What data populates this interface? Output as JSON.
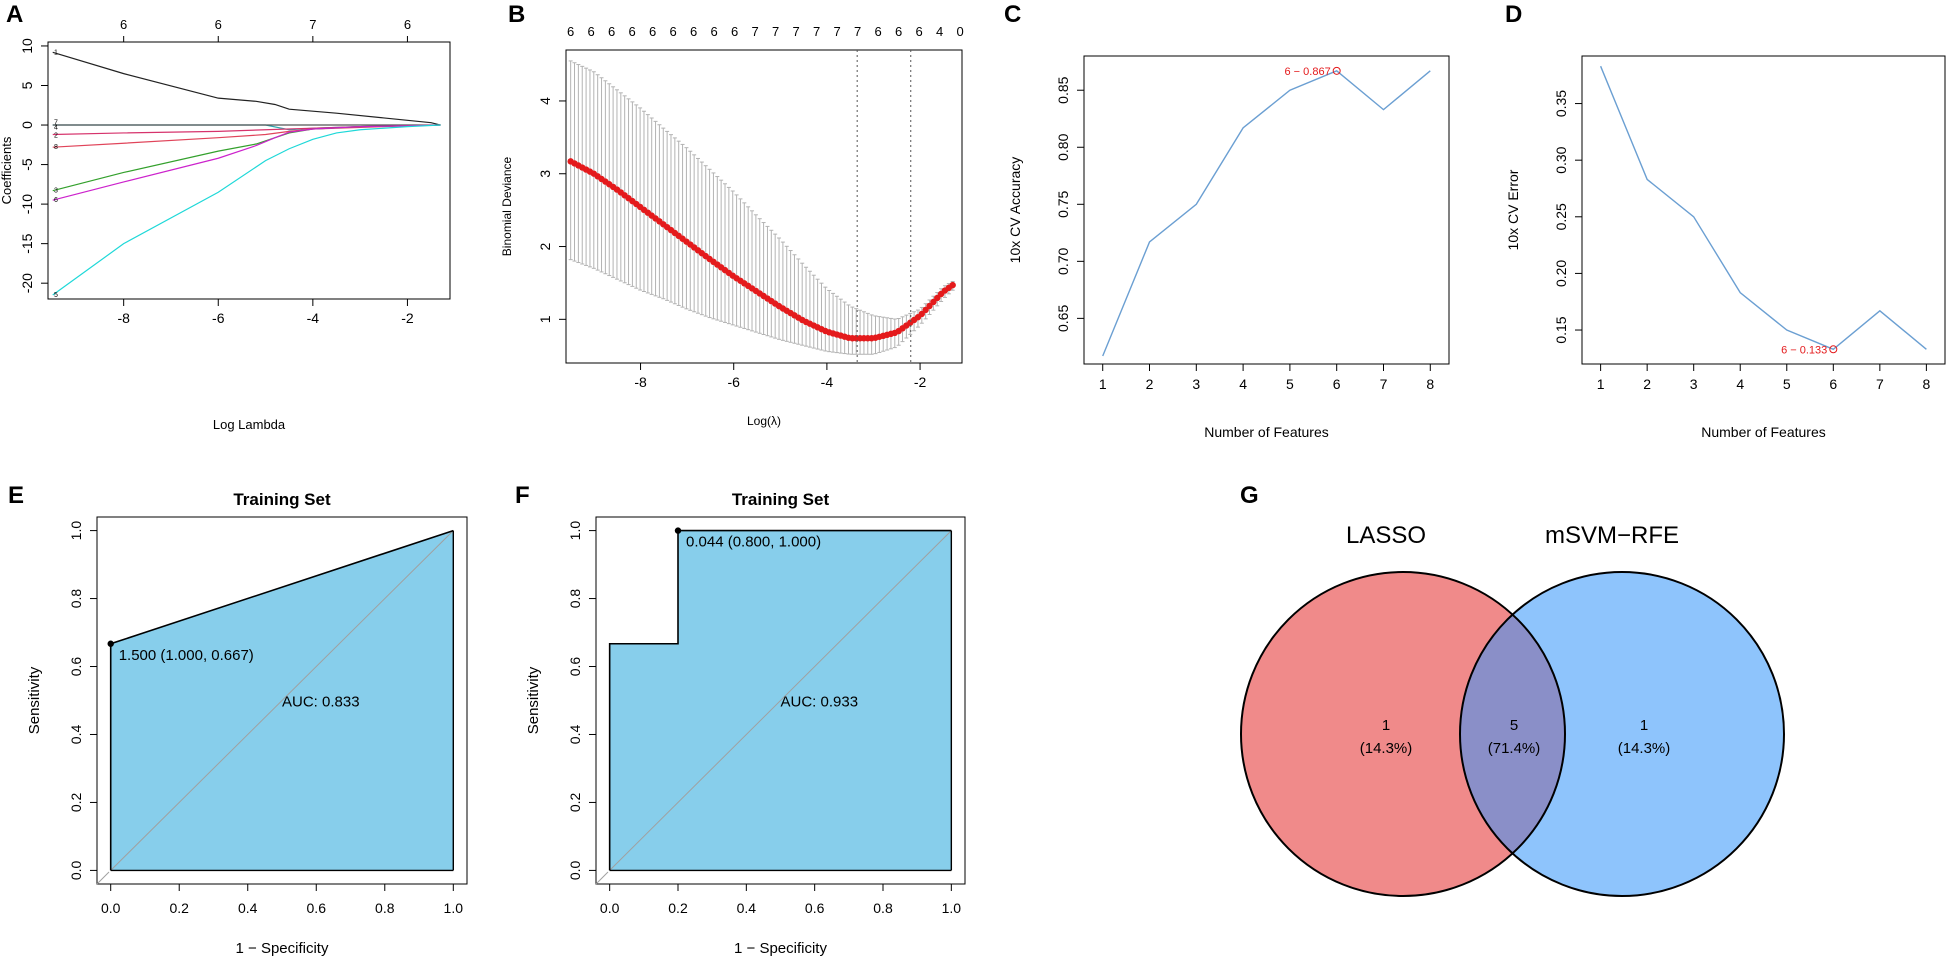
{
  "figure": {
    "panels": [
      {
        "label": "A"
      },
      {
        "label": "B"
      },
      {
        "label": "C"
      },
      {
        "label": "D"
      },
      {
        "label": "E"
      },
      {
        "label": "F"
      },
      {
        "label": "G"
      }
    ]
  },
  "colors": {
    "red": "#e41a1c",
    "roc_fill": "#87ceeb",
    "venn_left": "#f08a8a",
    "venn_right": "#8ec4fc",
    "venn_overlap": "#8a8fc8",
    "line_blue": "#6b9fd2",
    "grey": "#b3b3b3"
  },
  "chart_data": [
    {
      "panel": "A",
      "type": "line",
      "xlabel": "Log Lambda",
      "ylabel": "Coefficients",
      "xlim": [
        -9.6,
        -1.1
      ],
      "ylim": [
        -22,
        10.5
      ],
      "xticks": [
        -8,
        -6,
        -4,
        -2
      ],
      "yticks": [
        -20,
        -15,
        -10,
        -5,
        0,
        5,
        10
      ],
      "top_ticks": {
        "x": [
          -8,
          -6,
          -4,
          -2
        ],
        "labels": [
          "6",
          "6",
          "7",
          "6"
        ]
      },
      "series": [
        {
          "name": "1",
          "color": "#222222",
          "x": [
            -9.5,
            -8,
            -6,
            -5.2,
            -4.8,
            -4.5,
            -3.5,
            -2.5,
            -1.5,
            -1.3
          ],
          "y": [
            9.2,
            6.5,
            3.4,
            3.0,
            2.6,
            2.0,
            1.5,
            0.9,
            0.3,
            0.0
          ]
        },
        {
          "name": "7",
          "color": "#2ea8b0",
          "x": [
            -9.5,
            -6,
            -5,
            -4.5,
            -4,
            -3,
            -2,
            -1.3
          ],
          "y": [
            0.0,
            0.0,
            0.0,
            -0.6,
            -0.4,
            -0.2,
            -0.1,
            0.0
          ]
        },
        {
          "name": "4",
          "color": "#555555",
          "x": [
            -9.5,
            -6,
            -5,
            -4,
            -3,
            -1.3
          ],
          "y": [
            0.0,
            0.0,
            0.0,
            0.0,
            0.0,
            0.0
          ]
        },
        {
          "name": "2",
          "color": "#d6336c",
          "x": [
            -9.5,
            -8,
            -6,
            -5,
            -4,
            -3,
            -2,
            -1.3
          ],
          "y": [
            -1.2,
            -1.0,
            -0.8,
            -0.6,
            -0.4,
            -0.2,
            -0.1,
            0.0
          ]
        },
        {
          "name": "8",
          "color": "#e0445a",
          "x": [
            -9.5,
            -8,
            -6,
            -5,
            -4.5,
            -4,
            -3,
            -2,
            -1.3
          ],
          "y": [
            -2.8,
            -2.3,
            -1.6,
            -1.2,
            -0.8,
            -0.5,
            -0.3,
            -0.1,
            0.0
          ]
        },
        {
          "name": "3",
          "color": "#33a02c",
          "x": [
            -9.5,
            -8,
            -6,
            -5.2,
            -4.8,
            -4.5,
            -4,
            -3,
            -2,
            -1.3
          ],
          "y": [
            -8.3,
            -6.0,
            -3.3,
            -2.4,
            -1.6,
            -1.0,
            -0.5,
            -0.2,
            -0.1,
            0.0
          ]
        },
        {
          "name": "6",
          "color": "#cc22cc",
          "x": [
            -9.5,
            -8,
            -6,
            -5.2,
            -4.8,
            -4.5,
            -4,
            -3,
            -2,
            -1.3
          ],
          "y": [
            -9.5,
            -7.2,
            -4.2,
            -2.6,
            -1.6,
            -0.9,
            -0.5,
            -0.2,
            -0.1,
            0.0
          ]
        },
        {
          "name": "5",
          "color": "#1ed8d8",
          "x": [
            -9.5,
            -8,
            -6,
            -5,
            -4.5,
            -4,
            -3.5,
            -3,
            -2,
            -1.3
          ],
          "y": [
            -21.5,
            -15,
            -8.5,
            -4.5,
            -3.0,
            -1.8,
            -1.0,
            -0.6,
            -0.2,
            0.0
          ]
        }
      ],
      "line_labels": [
        {
          "name": "1",
          "y": 9.2
        },
        {
          "name": "7",
          "y": 0.3
        },
        {
          "name": "4",
          "y": -0.3
        },
        {
          "name": "2",
          "y": -1.3
        },
        {
          "name": "8",
          "y": -2.8
        },
        {
          "name": "3",
          "y": -8.3
        },
        {
          "name": "6",
          "y": -9.5
        },
        {
          "name": "5",
          "y": -21.5
        }
      ]
    },
    {
      "panel": "B",
      "type": "scatter",
      "xlabel": "Log(λ)",
      "ylabel": "Binomial Deviance",
      "xlim": [
        -9.6,
        -1.1
      ],
      "ylim": [
        0.4,
        4.7
      ],
      "xticks": [
        -8,
        -6,
        -4,
        -2
      ],
      "yticks": [
        1,
        2,
        3,
        4
      ],
      "top_ticks": {
        "x": [
          -9.5,
          -9.06,
          -8.62,
          -8.18,
          -7.74,
          -7.3,
          -6.86,
          -6.42,
          -5.98,
          -5.54,
          -5.1,
          -4.66,
          -4.22,
          -3.78,
          -3.34,
          -2.9,
          -2.46,
          -2.02,
          -1.58,
          -1.14
        ],
        "labels": [
          "6",
          "6",
          "6",
          "6",
          "6",
          "6",
          "6",
          "6",
          "6",
          "7",
          "7",
          "7",
          "7",
          "7",
          "7",
          "6",
          "6",
          "6",
          "4",
          "0"
        ]
      },
      "vlines": [
        -3.35,
        -2.2
      ],
      "curve": {
        "x": [
          -9.5,
          -9,
          -8.5,
          -8,
          -7.5,
          -7,
          -6.5,
          -6,
          -5.5,
          -5,
          -4.5,
          -4,
          -3.5,
          -3,
          -2.5,
          -2,
          -1.5,
          -1.3
        ],
        "y": [
          3.17,
          3.0,
          2.78,
          2.54,
          2.3,
          2.06,
          1.82,
          1.59,
          1.38,
          1.17,
          0.98,
          0.83,
          0.74,
          0.74,
          0.82,
          1.05,
          1.38,
          1.47
        ]
      },
      "error_band": {
        "upper": [
          4.55,
          4.4,
          4.15,
          3.9,
          3.62,
          3.35,
          3.05,
          2.75,
          2.42,
          2.1,
          1.75,
          1.42,
          1.18,
          1.05,
          1.0,
          1.14,
          1.45,
          1.52
        ],
        "lower": [
          1.82,
          1.7,
          1.55,
          1.4,
          1.28,
          1.14,
          1.02,
          0.92,
          0.82,
          0.72,
          0.64,
          0.56,
          0.52,
          0.52,
          0.62,
          0.92,
          1.28,
          1.4
        ]
      }
    },
    {
      "panel": "C",
      "type": "line",
      "xlabel": "Number of Features",
      "ylabel": "10x CV Accuracy",
      "x": [
        1,
        2,
        3,
        4,
        5,
        6,
        7,
        8
      ],
      "y": [
        0.617,
        0.717,
        0.75,
        0.817,
        0.85,
        0.867,
        0.833,
        0.867
      ],
      "xlim": [
        0.6,
        8.4
      ],
      "ylim": [
        0.61,
        0.88
      ],
      "xticks": [
        1,
        2,
        3,
        4,
        5,
        6,
        7,
        8
      ],
      "yticks": [
        0.65,
        0.7,
        0.75,
        0.8,
        0.85
      ],
      "ytick_labels": [
        "0.65",
        "0.70",
        "0.75",
        "0.80",
        "0.85"
      ],
      "annotation": {
        "x": 6,
        "y": 0.867,
        "text": "6 − 0.867"
      }
    },
    {
      "panel": "D",
      "type": "line",
      "xlabel": "Number of Features",
      "ylabel": "10x CV Error",
      "x": [
        1,
        2,
        3,
        4,
        5,
        6,
        7,
        8
      ],
      "y": [
        0.383,
        0.283,
        0.25,
        0.183,
        0.15,
        0.133,
        0.167,
        0.133
      ],
      "xlim": [
        0.6,
        8.4
      ],
      "ylim": [
        0.12,
        0.392
      ],
      "xticks": [
        1,
        2,
        3,
        4,
        5,
        6,
        7,
        8
      ],
      "yticks": [
        0.15,
        0.2,
        0.25,
        0.3,
        0.35
      ],
      "ytick_labels": [
        "0.15",
        "0.20",
        "0.25",
        "0.30",
        "0.35"
      ],
      "annotation": {
        "x": 6,
        "y": 0.133,
        "text": "6 − 0.133"
      }
    },
    {
      "panel": "E",
      "type": "area",
      "title": "Training Set",
      "xlabel": "1 − Specificity",
      "ylabel": "Sensitivity",
      "xlim": [
        -0.04,
        1.04
      ],
      "ylim": [
        -0.04,
        1.04
      ],
      "xticks": [
        0,
        0.2,
        0.4,
        0.6,
        0.8,
        1.0
      ],
      "xtick_labels": [
        "0.0",
        "0.2",
        "0.4",
        "0.6",
        "0.8",
        "1.0"
      ],
      "yticks": [
        0,
        0.2,
        0.4,
        0.6,
        0.8,
        1.0
      ],
      "ytick_labels": [
        "0.0",
        "0.2",
        "0.4",
        "0.6",
        "0.8",
        "1.0"
      ],
      "roc_x": [
        0,
        0,
        1
      ],
      "roc_y": [
        0,
        0.667,
        1
      ],
      "threshold_point": {
        "x": 0,
        "y": 0.667,
        "label": "1.500 (1.000, 0.667)"
      },
      "auc_label": "AUC: 0.833"
    },
    {
      "panel": "F",
      "type": "area",
      "title": "Training Set",
      "xlabel": "1 − Specificity",
      "ylabel": "Sensitivity",
      "xlim": [
        -0.04,
        1.04
      ],
      "ylim": [
        -0.04,
        1.04
      ],
      "xticks": [
        0,
        0.2,
        0.4,
        0.6,
        0.8,
        1.0
      ],
      "xtick_labels": [
        "0.0",
        "0.2",
        "0.4",
        "0.6",
        "0.8",
        "1.0"
      ],
      "yticks": [
        0,
        0.2,
        0.4,
        0.6,
        0.8,
        1.0
      ],
      "ytick_labels": [
        "0.0",
        "0.2",
        "0.4",
        "0.6",
        "0.8",
        "1.0"
      ],
      "roc_x": [
        0,
        0,
        0.2,
        0.2,
        1
      ],
      "roc_y": [
        0,
        0.667,
        0.667,
        1,
        1
      ],
      "threshold_point": {
        "x": 0.2,
        "y": 1,
        "label": "0.044 (0.800, 1.000)"
      },
      "auc_label": "AUC: 0.933"
    },
    {
      "panel": "G",
      "type": "venn",
      "sets": [
        {
          "name": "LASSO",
          "only": 1,
          "only_pct": "(14.3%)"
        },
        {
          "name": "mSVM−RFE",
          "only": 1,
          "only_pct": "(14.3%)"
        }
      ],
      "overlap": {
        "count": 5,
        "pct": "(71.4%)"
      }
    }
  ]
}
